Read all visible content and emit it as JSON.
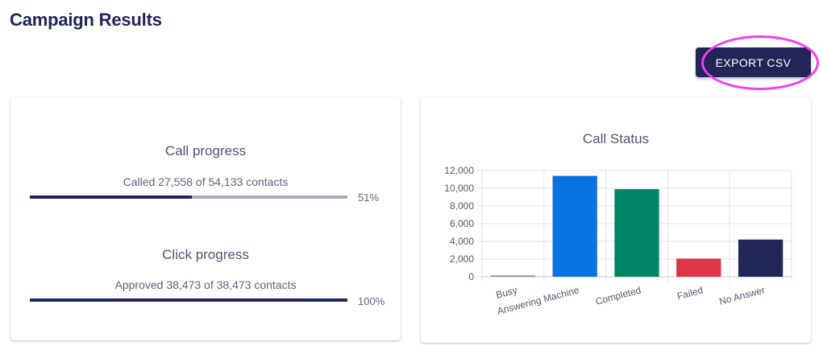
{
  "page": {
    "title": "Campaign Results"
  },
  "toolbar": {
    "export_label": "EXPORT CSV"
  },
  "call_progress": {
    "title": "Call progress",
    "subtitle": "Called 27,558 of 54,133 contacts",
    "percent_label": "51%",
    "fraction": 0.51
  },
  "click_progress": {
    "title": "Click progress",
    "subtitle": "Approved 38,473 of 38,473 contacts",
    "percent_label": "100%",
    "fraction": 1.0
  },
  "chart_data": {
    "type": "bar",
    "title": "Call Status",
    "xlabel": "",
    "ylabel": "",
    "categories": [
      "Busy",
      "Answering Machine",
      "Completed",
      "Failed",
      "No Answer"
    ],
    "values": [
      150,
      11400,
      9900,
      2050,
      4200
    ],
    "colors": [
      "#8a8ca8",
      "#0a72e0",
      "#008564",
      "#dc3545",
      "#212557"
    ],
    "ylim": [
      0,
      12000
    ],
    "yticks": [
      "12,000",
      "10,000",
      "8,000",
      "6,000",
      "4,000",
      "2,000",
      "0"
    ],
    "ytick_values": [
      12000,
      10000,
      8000,
      6000,
      4000,
      2000,
      0
    ],
    "grid": true,
    "legend": "none"
  },
  "colors": {
    "primary": "#212557",
    "highlight": "#f23df0",
    "track": "#a9aabf"
  }
}
